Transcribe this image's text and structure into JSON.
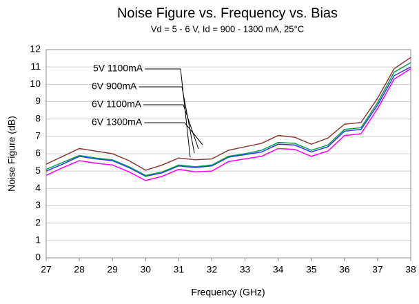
{
  "chart_data": {
    "type": "line",
    "title": "Noise Figure vs. Frequency vs. Bias",
    "subtitle": "Vd = 5 - 6 V, Id = 900 - 1300 mA,  25°C",
    "x_label": "Frequency (GHz)",
    "y_label": "Noise Figure (dB)",
    "xlim": [
      27,
      38
    ],
    "ylim": [
      0,
      12
    ],
    "xticks": [
      27,
      28,
      29,
      30,
      31,
      32,
      33,
      34,
      35,
      36,
      37,
      38
    ],
    "yticks": [
      0,
      1,
      2,
      3,
      4,
      5,
      6,
      7,
      8,
      9,
      10,
      11,
      12
    ],
    "grid": true,
    "x": [
      27,
      27.5,
      28,
      28.5,
      29,
      29.5,
      30,
      30.5,
      31,
      31.5,
      32,
      32.5,
      33,
      33.5,
      34,
      34.5,
      35,
      35.5,
      36,
      36.5,
      37,
      37.5,
      38
    ],
    "series": [
      {
        "name": "5V 1100mA",
        "color": "#3333ff",
        "values": [
          5.0,
          5.4,
          5.85,
          5.7,
          5.6,
          5.2,
          4.7,
          4.9,
          5.3,
          5.2,
          5.3,
          5.8,
          5.95,
          6.1,
          6.55,
          6.5,
          6.1,
          6.4,
          7.3,
          7.4,
          8.8,
          10.5,
          11.0
        ]
      },
      {
        "name": "6V 900mA",
        "color": "#ff00ff",
        "values": [
          4.75,
          5.2,
          5.6,
          5.45,
          5.35,
          4.95,
          4.45,
          4.7,
          5.1,
          4.95,
          5.0,
          5.55,
          5.7,
          5.85,
          6.3,
          6.25,
          5.85,
          6.15,
          7.05,
          7.15,
          8.6,
          10.3,
          10.9
        ]
      },
      {
        "name": "6V 1100mA",
        "color": "#00a050",
        "values": [
          5.1,
          5.5,
          5.9,
          5.75,
          5.65,
          5.25,
          4.75,
          4.95,
          5.35,
          5.25,
          5.35,
          5.85,
          6.0,
          6.2,
          6.65,
          6.6,
          6.2,
          6.5,
          7.4,
          7.5,
          8.95,
          10.7,
          11.25
        ]
      },
      {
        "name": "6V 1300mA",
        "color": "#8b3a3a",
        "values": [
          5.4,
          5.85,
          6.3,
          6.15,
          6.0,
          5.6,
          5.05,
          5.35,
          5.75,
          5.65,
          5.7,
          6.2,
          6.4,
          6.6,
          7.05,
          6.95,
          6.55,
          6.9,
          7.7,
          7.8,
          9.2,
          10.9,
          11.55
        ]
      }
    ]
  }
}
